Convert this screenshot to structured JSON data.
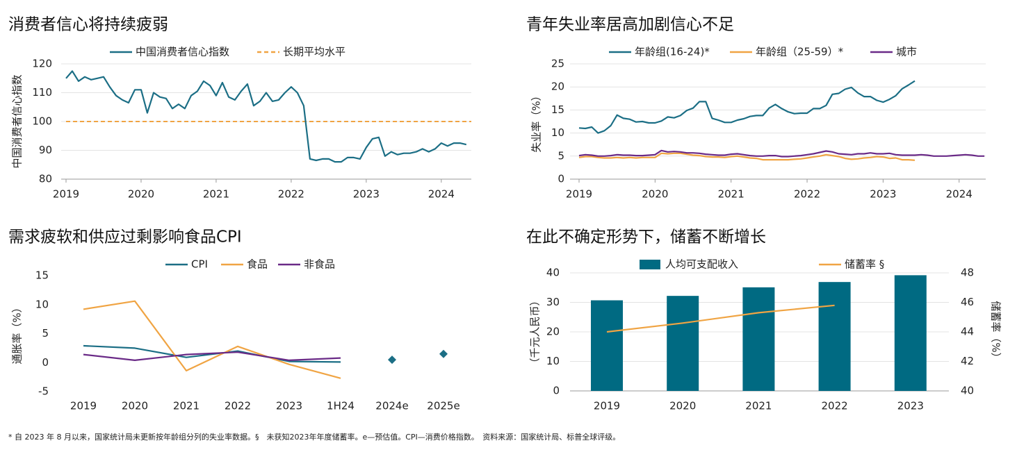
{
  "chart_data": [
    {
      "type": "line",
      "title": "消费者信心将持续疲弱",
      "y_label": "中国消费者信心指数",
      "xlim": [
        2019,
        2024.4
      ],
      "xticks": [
        2019,
        2020,
        2021,
        2022,
        2023,
        2024
      ],
      "ylim": [
        80,
        120
      ],
      "yticks": [
        80,
        90,
        100,
        110,
        120
      ],
      "grid": true,
      "x": [
        2019,
        2019.083,
        2019.167,
        2019.25,
        2019.333,
        2019.417,
        2019.5,
        2019.583,
        2019.667,
        2019.75,
        2019.833,
        2019.917,
        2020,
        2020.083,
        2020.167,
        2020.25,
        2020.333,
        2020.417,
        2020.5,
        2020.583,
        2020.667,
        2020.75,
        2020.833,
        2020.917,
        2021,
        2021.083,
        2021.167,
        2021.25,
        2021.333,
        2021.417,
        2021.5,
        2021.583,
        2021.667,
        2021.75,
        2021.833,
        2021.917,
        2022,
        2022.083,
        2022.167,
        2022.25,
        2022.333,
        2022.417,
        2022.5,
        2022.583,
        2022.667,
        2022.75,
        2022.833,
        2022.917,
        2023,
        2023.083,
        2023.167,
        2023.25,
        2023.333,
        2023.417,
        2023.5,
        2023.583,
        2023.667,
        2023.75,
        2023.833,
        2023.917,
        2024,
        2024.083,
        2024.167,
        2024.25,
        2024.333
      ],
      "series": [
        {
          "name": "中国消费者信心指数",
          "color": "#1b6e85",
          "values": [
            115,
            117.5,
            114,
            115.5,
            114.5,
            115,
            115.5,
            112,
            109,
            107.5,
            106.5,
            111,
            111,
            103,
            110,
            108.5,
            108,
            104.5,
            106,
            104.5,
            109,
            110.5,
            114,
            112.5,
            109,
            113.5,
            108.5,
            107.5,
            110.5,
            113,
            105.5,
            107,
            110,
            107,
            107.5,
            110,
            112,
            110,
            105.5,
            87,
            86.5,
            87,
            87,
            86,
            86,
            87.5,
            87.5,
            87,
            91,
            94,
            94.5,
            88,
            89.5,
            88.5,
            89,
            89,
            89.5,
            90.5,
            89.5,
            90.5,
            92.5,
            91.5,
            92.5,
            92.5,
            92
          ]
        }
      ],
      "reference": {
        "name": "长期平均水平",
        "value": 100,
        "color": "#f0a443"
      }
    },
    {
      "type": "line",
      "title": "青年失业率居高加剧信心不足",
      "y_label": "失业率（%）",
      "xlim": [
        2019,
        2024.35
      ],
      "xticks": [
        2019,
        2020,
        2021,
        2022,
        2023,
        2024
      ],
      "ylim": [
        0,
        25
      ],
      "yticks": [
        0,
        5,
        10,
        15,
        20,
        25
      ],
      "grid": true,
      "x": [
        2019,
        2019.083,
        2019.167,
        2019.25,
        2019.333,
        2019.417,
        2019.5,
        2019.583,
        2019.667,
        2019.75,
        2019.833,
        2019.917,
        2020,
        2020.083,
        2020.167,
        2020.25,
        2020.333,
        2020.417,
        2020.5,
        2020.583,
        2020.667,
        2020.75,
        2020.833,
        2020.917,
        2021,
        2021.083,
        2021.167,
        2021.25,
        2021.333,
        2021.417,
        2021.5,
        2021.583,
        2021.667,
        2021.75,
        2021.833,
        2021.917,
        2022,
        2022.083,
        2022.167,
        2022.25,
        2022.333,
        2022.417,
        2022.5,
        2022.583,
        2022.667,
        2022.75,
        2022.833,
        2022.917,
        2023,
        2023.083,
        2023.167,
        2023.25,
        2023.333,
        2023.417,
        2023.5,
        2023.583,
        2023.667,
        2023.75,
        2023.833,
        2023.917,
        2024,
        2024.083,
        2024.167,
        2024.25,
        2024.333
      ],
      "series": [
        {
          "name": "年龄组(16-24)*",
          "color": "#1b6e85",
          "values": [
            11.1,
            11,
            11.3,
            10,
            10.5,
            11.6,
            13.9,
            13.2,
            13,
            12.4,
            12.5,
            12.2,
            12.2,
            12.6,
            13.5,
            13.3,
            13.8,
            14.9,
            15.4,
            16.8,
            16.8,
            13.2,
            12.8,
            12.3,
            12.3,
            12.8,
            13.1,
            13.6,
            13.8,
            13.8,
            15.4,
            16.2,
            15.3,
            14.6,
            14.2,
            14.3,
            14.3,
            15.3,
            15.3,
            16,
            18.4,
            18.6,
            19.5,
            19.9,
            18.7,
            17.9,
            17.9,
            17.1,
            16.7,
            17.3,
            18.1,
            19.6,
            20.4,
            21.3,
            null,
            null,
            null,
            null,
            null,
            null,
            null,
            null,
            null,
            null,
            null
          ]
        },
        {
          "name": "年龄组（25-59）*",
          "color": "#f0a443",
          "values": [
            4.7,
            4.9,
            4.9,
            4.7,
            4.6,
            4.6,
            4.7,
            4.6,
            4.7,
            4.6,
            4.7,
            4.7,
            4.7,
            5.6,
            5.5,
            5.6,
            5.6,
            5.4,
            5.2,
            5.1,
            4.9,
            4.8,
            4.8,
            4.7,
            4.9,
            5,
            4.8,
            4.6,
            4.5,
            4.2,
            4.2,
            4.2,
            4.2,
            4.2,
            4.3,
            4.4,
            4.6,
            4.8,
            5,
            5.3,
            5.1,
            4.9,
            4.5,
            4.3,
            4.4,
            4.6,
            4.7,
            4.9,
            4.8,
            4.5,
            4.6,
            4.2,
            4.2,
            4.1,
            null,
            null,
            null,
            null,
            null,
            null,
            null,
            null,
            null,
            null,
            null
          ]
        },
        {
          "name": "城市",
          "color": "#6a2a87",
          "values": [
            5.1,
            5.3,
            5.2,
            5,
            5,
            5.1,
            5.3,
            5.2,
            5.2,
            5.1,
            5.1,
            5.2,
            5.3,
            6.2,
            5.9,
            6,
            5.9,
            5.7,
            5.7,
            5.6,
            5.4,
            5.3,
            5.2,
            5.2,
            5.4,
            5.5,
            5.3,
            5.1,
            5,
            5,
            5.1,
            5.1,
            4.9,
            4.9,
            5,
            5.1,
            5.3,
            5.5,
            5.8,
            6.1,
            5.9,
            5.5,
            5.4,
            5.3,
            5.5,
            5.5,
            5.7,
            5.5,
            5.5,
            5.6,
            5.3,
            5.2,
            5.2,
            5.2,
            5.3,
            5.2,
            5,
            5,
            5,
            5.1,
            5.2,
            5.3,
            5.2,
            5,
            5
          ]
        }
      ]
    },
    {
      "type": "line",
      "title": "需求疲软和供应过剩影响食品CPI",
      "y_label": "通胀率（%）",
      "categories": [
        "2019",
        "2020",
        "2021",
        "2022",
        "2023",
        "1H24",
        "2024e",
        "2025e"
      ],
      "ylim": [
        -5,
        15
      ],
      "yticks": [
        -5,
        0,
        5,
        10,
        15
      ],
      "grid": false,
      "series": [
        {
          "name": "CPI",
          "color": "#1b6e85",
          "values": [
            2.9,
            2.5,
            0.9,
            2.0,
            0.2,
            0.1,
            0.5,
            1.5
          ],
          "marker": [
            null,
            null,
            null,
            null,
            null,
            null,
            "diamond",
            "diamond"
          ]
        },
        {
          "name": "食品",
          "color": "#f0a443",
          "values": [
            9.2,
            10.6,
            -1.4,
            2.8,
            -0.3,
            -2.7,
            null,
            null
          ]
        },
        {
          "name": "非食品",
          "color": "#6a2a87",
          "values": [
            1.4,
            0.4,
            1.4,
            1.8,
            0.4,
            0.8,
            null,
            null
          ]
        }
      ]
    },
    {
      "type": "bar",
      "title": "在此不确定形势下，储蓄不断增长",
      "y_label": "（千元人民币）",
      "y2_label": "储蓄率（%）",
      "categories": [
        "2019",
        "2020",
        "2021",
        "2022",
        "2023"
      ],
      "ylim": [
        0,
        40
      ],
      "yticks": [
        0,
        10,
        20,
        30,
        40
      ],
      "y2lim": [
        40,
        48
      ],
      "y2ticks": [
        40,
        42,
        44,
        46,
        48
      ],
      "grid": true,
      "series": [
        {
          "name": "人均可支配收入",
          "color": "#006a82",
          "kind": "bar",
          "values": [
            30.7,
            32.2,
            35.1,
            36.9,
            39.2
          ]
        },
        {
          "name": "储蓄率 §",
          "color": "#f0a443",
          "kind": "line",
          "axis": "y2",
          "values": [
            44.0,
            44.6,
            45.3,
            45.8,
            null
          ]
        }
      ]
    }
  ],
  "footnote": "* 自 2023 年 8 月以来，国家统计局未更新按年龄组分列的失业率数据。§　未获知2023年年度储蓄率。e—预估值。CPI—消费价格指数。　资料来源：国家统计局、标普全球评级。"
}
